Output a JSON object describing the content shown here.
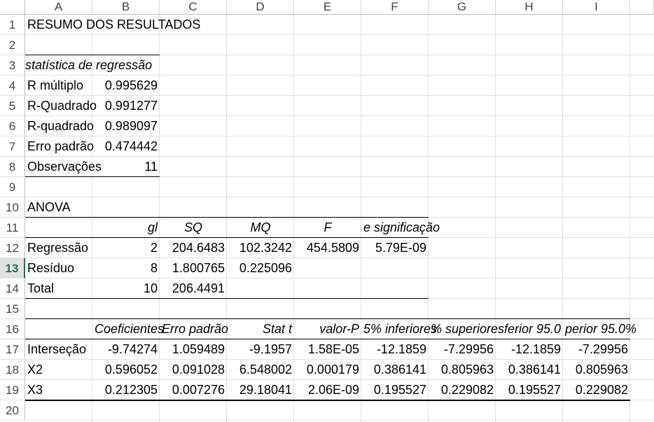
{
  "columns": [
    "A",
    "B",
    "C",
    "D",
    "E",
    "F",
    "G",
    "H",
    "I"
  ],
  "rows": [
    "1",
    "2",
    "3",
    "4",
    "5",
    "6",
    "7",
    "8",
    "9",
    "10",
    "11",
    "12",
    "13",
    "14",
    "15",
    "16",
    "17",
    "18",
    "19",
    "20"
  ],
  "active_row": "13",
  "title": "RESUMO DOS RESULTADOS",
  "regression": {
    "header": "statística de regressão",
    "rows": [
      {
        "label": "R múltiplo",
        "value": "0.995629"
      },
      {
        "label": "R-Quadrado",
        "value": "0.991277"
      },
      {
        "label": "R-quadrado",
        "value": "0.989097"
      },
      {
        "label": "Erro padrão",
        "value": "0.474442"
      },
      {
        "label": "Observações",
        "value": "11"
      }
    ]
  },
  "anova": {
    "label": "ANOVA",
    "headers": [
      "gl",
      "SQ",
      "MQ",
      "F",
      "e significação"
    ],
    "rows": [
      {
        "label": "Regressão",
        "values": [
          "2",
          "204.6483",
          "102.3242",
          "454.5809",
          "5.79E-09"
        ]
      },
      {
        "label": "Resíduo",
        "values": [
          "8",
          "1.800765",
          "0.225096",
          "",
          ""
        ]
      },
      {
        "label": "Total",
        "values": [
          "10",
          "206.4491",
          "",
          "",
          ""
        ]
      }
    ]
  },
  "coefficients": {
    "headers": [
      "Coeficientes",
      "Erro padrão",
      "Stat t",
      "valor-P",
      "5% inferiores",
      "% superiores",
      "ferior 95.0",
      "perior 95.0%"
    ],
    "rows": [
      {
        "label": "Interseção",
        "values": [
          "-9.74274",
          "1.059489",
          "-9.1957",
          "1.58E-05",
          "-12.1859",
          "-7.29956",
          "-12.1859",
          "-7.29956"
        ]
      },
      {
        "label": "X2",
        "values": [
          "0.596052",
          "0.091028",
          "6.548002",
          "0.000179",
          "0.386141",
          "0.805963",
          "0.386141",
          "0.805963"
        ]
      },
      {
        "label": "X3",
        "values": [
          "0.212305",
          "0.007276",
          "29.18041",
          "2.06E-09",
          "0.195527",
          "0.229082",
          "0.195527",
          "0.229082"
        ]
      }
    ]
  }
}
